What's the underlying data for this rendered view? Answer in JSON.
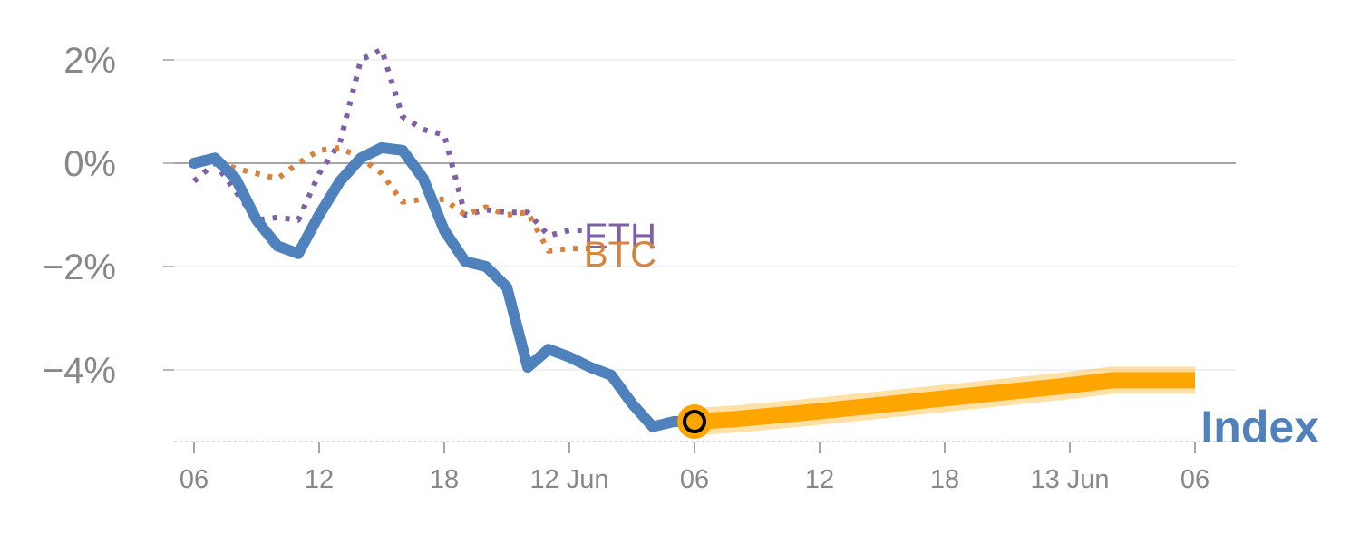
{
  "chart_data": {
    "type": "line",
    "title": "",
    "xlabel": "",
    "ylabel": "",
    "x_unit": "hours",
    "xlim": [
      0,
      48
    ],
    "ylim": [
      -5.3,
      2.4
    ],
    "y_ticks": [
      {
        "value": 2,
        "label": "2%"
      },
      {
        "value": 0,
        "label": "0%"
      },
      {
        "value": -2,
        "label": "−2%"
      },
      {
        "value": -4,
        "label": "−4%"
      }
    ],
    "x_ticks": [
      {
        "value": 0,
        "label": "06"
      },
      {
        "value": 6,
        "label": "12"
      },
      {
        "value": 12,
        "label": "18"
      },
      {
        "value": 18,
        "label": "12 Jun"
      },
      {
        "value": 24,
        "label": "06"
      },
      {
        "value": 30,
        "label": "12"
      },
      {
        "value": 36,
        "label": "18"
      },
      {
        "value": 42,
        "label": "13 Jun"
      },
      {
        "value": 48,
        "label": "06"
      }
    ],
    "series": [
      {
        "name": "ETH",
        "color": "#7F5FA5",
        "style": "dotted",
        "x": [
          0,
          1,
          2,
          3,
          4,
          5,
          6,
          7,
          8,
          9,
          10,
          11,
          12,
          13,
          14,
          15,
          16,
          17,
          18,
          19,
          20,
          21,
          22,
          23,
          24
        ],
        "values": [
          -0.35,
          0.0,
          -0.55,
          -1.1,
          -1.05,
          -1.1,
          -0.2,
          0.4,
          2.0,
          2.2,
          0.9,
          0.65,
          0.55,
          -1.0,
          -0.9,
          -0.95,
          -0.95,
          -1.4,
          -1.3,
          -1.3,
          null,
          null,
          null,
          null,
          null
        ]
      },
      {
        "name": "BTC",
        "color": "#D9823B",
        "style": "dotted",
        "x": [
          0,
          1,
          2,
          3,
          4,
          5,
          6,
          7,
          8,
          9,
          10,
          11,
          12,
          13,
          14,
          15,
          16,
          17,
          18,
          19,
          20,
          21,
          22,
          23,
          24
        ],
        "values": [
          0.0,
          0.05,
          -0.1,
          -0.2,
          -0.3,
          0.0,
          0.25,
          0.3,
          0.1,
          -0.2,
          -0.75,
          -0.7,
          -0.7,
          -1.0,
          -0.85,
          -1.0,
          -0.95,
          -1.7,
          -1.65,
          -1.65,
          null,
          null,
          null,
          null,
          null
        ]
      },
      {
        "name": "Index",
        "color": "#4F81BD",
        "style": "solid",
        "x": [
          0,
          1,
          2,
          3,
          4,
          5,
          6,
          7,
          8,
          9,
          10,
          11,
          12,
          13,
          14,
          15,
          16,
          17,
          18,
          19,
          20,
          21,
          22,
          23,
          24
        ],
        "values": [
          0.0,
          0.1,
          -0.3,
          -1.1,
          -1.6,
          -1.75,
          -1.0,
          -0.35,
          0.1,
          0.3,
          0.25,
          -0.3,
          -1.3,
          -1.9,
          -2.0,
          -2.4,
          -3.95,
          -3.6,
          -3.75,
          -3.95,
          -4.1,
          -4.65,
          -5.1,
          -5.0,
          -5.0
        ]
      },
      {
        "name": "Index projection",
        "color": "#FFA500",
        "style": "solid-thick",
        "x": [
          24,
          26,
          30,
          36,
          42,
          44,
          48
        ],
        "values": [
          -5.0,
          -4.95,
          -4.8,
          -4.55,
          -4.3,
          -4.2,
          -4.2
        ]
      }
    ],
    "labels": {
      "eth": "ETH",
      "btc": "BTC",
      "index": "Index"
    },
    "marker": {
      "x": 24,
      "value": -5.0,
      "color": "#FFA500"
    },
    "zero_line_color": "#888888",
    "grid_color": "#e6e6e6"
  }
}
